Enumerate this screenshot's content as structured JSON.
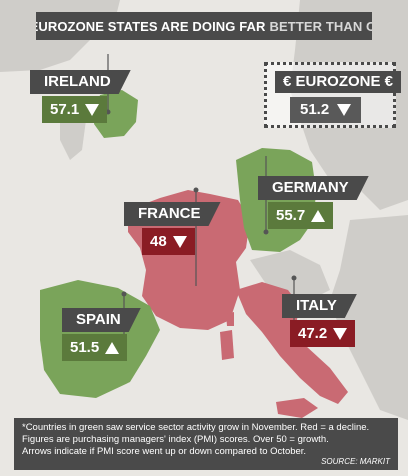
{
  "title": {
    "part1": "SOME EUROZONE STATES ARE DOING FAR",
    "part2": "BETTER THAN OTHERS"
  },
  "colors": {
    "sea": "#e9e7e3",
    "land": "#cfcdc9",
    "green": "#7aa45a",
    "red": "#c96a73",
    "dark_label": "#4a4a4a",
    "green_label": "#5b7a3c",
    "red_label": "#8a1c24"
  },
  "eurozone": {
    "name": "€ EUROZONE €",
    "value": "51.2",
    "trend": "down"
  },
  "countries": [
    {
      "key": "ireland",
      "name": "IRELAND",
      "value": "57.1",
      "trend": "down",
      "status": "green"
    },
    {
      "key": "france",
      "name": "FRANCE",
      "value": "48",
      "trend": "down",
      "status": "red"
    },
    {
      "key": "germany",
      "name": "GERMANY",
      "value": "55.7",
      "trend": "up",
      "status": "green"
    },
    {
      "key": "spain",
      "name": "SPAIN",
      "value": "51.5",
      "trend": "up",
      "status": "green"
    },
    {
      "key": "italy",
      "name": "ITALY",
      "value": "47.2",
      "trend": "down",
      "status": "red"
    }
  ],
  "footnote": {
    "line1": "*Countries in green saw service sector activity grow in November. Red = a decline.",
    "line2": "Figures are purchasing managers' index (PMI) scores. Over 50 = growth.",
    "line3": "Arrows indicate if PMI score went up or down compared to October."
  },
  "source": "SOURCE: MARKIT"
}
